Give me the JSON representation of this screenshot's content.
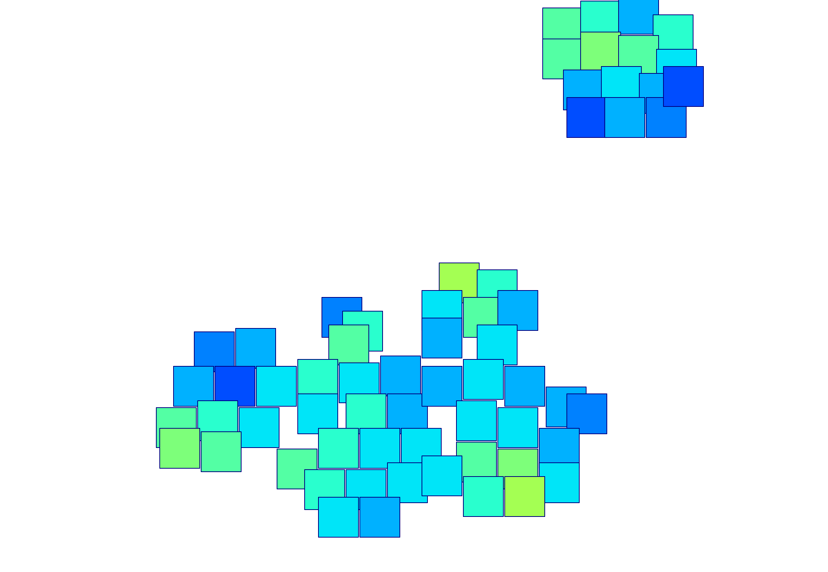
{
  "chart_data": {
    "type": "scatter",
    "marker": "square",
    "color": "jet",
    "tick_labels": false,
    "grid": false,
    "xlim": [
      0,
      1200
    ],
    "ylim": [
      830,
      0
    ],
    "color_range": [
      0,
      1
    ],
    "x": [
      815,
      870,
      925,
      975,
      815,
      870,
      925,
      980,
      845,
      900,
      955,
      850,
      905,
      965,
      990,
      310,
      370,
      280,
      340,
      400,
      255,
      315,
      375,
      260,
      320,
      495,
      525,
      505,
      665,
      720,
      640,
      700,
      750,
      640,
      720,
      460,
      520,
      580,
      460,
      530,
      590,
      640,
      700,
      760,
      820,
      850,
      690,
      750,
      810,
      690,
      750,
      810,
      700,
      760,
      430,
      490,
      550,
      610,
      470,
      530,
      590,
      490,
      550,
      640
    ],
    "y": [
      40,
      30,
      20,
      50,
      85,
      75,
      80,
      100,
      130,
      125,
      135,
      170,
      170,
      170,
      125,
      510,
      505,
      560,
      560,
      560,
      620,
      610,
      620,
      650,
      655,
      460,
      480,
      500,
      410,
      420,
      450,
      460,
      450,
      490,
      500,
      550,
      555,
      545,
      600,
      600,
      600,
      560,
      550,
      560,
      590,
      600,
      610,
      620,
      650,
      670,
      680,
      700,
      720,
      720,
      680,
      650,
      650,
      650,
      710,
      710,
      700,
      750,
      750,
      690
    ],
    "values": [
      0.45,
      0.4,
      0.3,
      0.4,
      0.45,
      0.5,
      0.45,
      0.35,
      0.3,
      0.35,
      0.3,
      0.2,
      0.3,
      0.25,
      0.2,
      0.25,
      0.3,
      0.3,
      0.2,
      0.35,
      0.45,
      0.4,
      0.35,
      0.5,
      0.45,
      0.25,
      0.4,
      0.45,
      0.55,
      0.4,
      0.35,
      0.45,
      0.3,
      0.3,
      0.35,
      0.4,
      0.35,
      0.3,
      0.35,
      0.4,
      0.3,
      0.3,
      0.35,
      0.3,
      0.3,
      0.25,
      0.35,
      0.35,
      0.3,
      0.45,
      0.5,
      0.35,
      0.4,
      0.55,
      0.45,
      0.4,
      0.35,
      0.35,
      0.4,
      0.35,
      0.35,
      0.35,
      0.3,
      0.35
    ]
  }
}
